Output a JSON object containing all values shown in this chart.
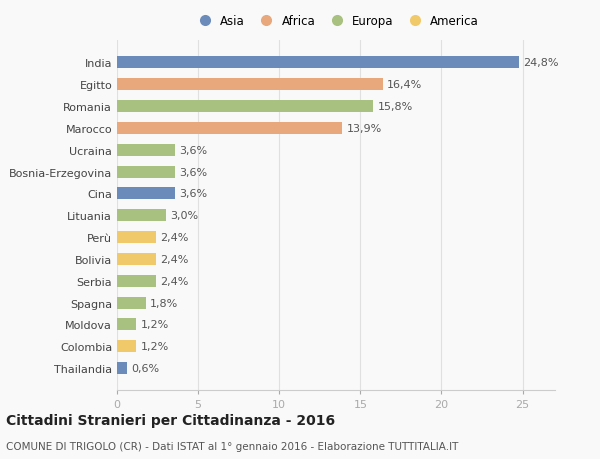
{
  "categories": [
    "Thailandia",
    "Colombia",
    "Moldova",
    "Spagna",
    "Serbia",
    "Bolivia",
    "Perù",
    "Lituania",
    "Cina",
    "Bosnia-Erzegovina",
    "Ucraina",
    "Marocco",
    "Romania",
    "Egitto",
    "India"
  ],
  "values": [
    0.6,
    1.2,
    1.2,
    1.8,
    2.4,
    2.4,
    2.4,
    3.0,
    3.6,
    3.6,
    3.6,
    13.9,
    15.8,
    16.4,
    24.8
  ],
  "continents": [
    "Asia",
    "America",
    "Europa",
    "Europa",
    "Europa",
    "America",
    "America",
    "Europa",
    "Asia",
    "Europa",
    "Europa",
    "Africa",
    "Europa",
    "Africa",
    "Asia"
  ],
  "colors": {
    "Asia": "#6b8cba",
    "Africa": "#e8a87c",
    "Europa": "#a8c080",
    "America": "#f0c96a"
  },
  "legend_order": [
    "Asia",
    "Africa",
    "Europa",
    "America"
  ],
  "title": "Cittadini Stranieri per Cittadinanza - 2016",
  "subtitle": "COMUNE DI TRIGOLO (CR) - Dati ISTAT al 1° gennaio 2016 - Elaborazione TUTTITALIA.IT",
  "xlim": [
    0,
    27
  ],
  "xticks": [
    0,
    5,
    10,
    15,
    20,
    25
  ],
  "bg_color": "#f9f9f9",
  "bar_height": 0.55,
  "label_fontsize": 8,
  "ytick_fontsize": 8,
  "xtick_fontsize": 8,
  "title_fontsize": 10,
  "subtitle_fontsize": 7.5
}
